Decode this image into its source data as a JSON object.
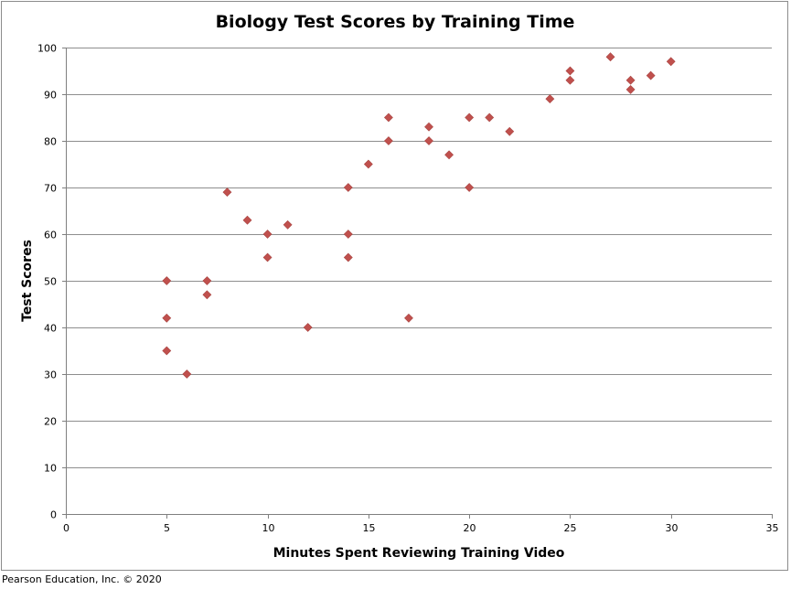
{
  "chart_data": {
    "type": "scatter",
    "title": "Biology Test Scores by Training Time",
    "xlabel": "Minutes Spent Reviewing Training Video",
    "ylabel": "Test Scores",
    "xlim": [
      0,
      35
    ],
    "ylim": [
      0,
      100
    ],
    "x_ticks": [
      0,
      5,
      10,
      15,
      20,
      25,
      30,
      35
    ],
    "y_ticks": [
      0,
      10,
      20,
      30,
      40,
      50,
      60,
      70,
      80,
      90,
      100
    ],
    "grid": true,
    "marker": "diamond",
    "marker_color": "#c0504d",
    "points": [
      {
        "x": 5,
        "y": 50
      },
      {
        "x": 5,
        "y": 42
      },
      {
        "x": 5,
        "y": 35
      },
      {
        "x": 6,
        "y": 30
      },
      {
        "x": 7,
        "y": 50
      },
      {
        "x": 7,
        "y": 47
      },
      {
        "x": 8,
        "y": 69
      },
      {
        "x": 9,
        "y": 63
      },
      {
        "x": 10,
        "y": 60
      },
      {
        "x": 10,
        "y": 55
      },
      {
        "x": 11,
        "y": 62
      },
      {
        "x": 12,
        "y": 40
      },
      {
        "x": 14,
        "y": 70
      },
      {
        "x": 14,
        "y": 60
      },
      {
        "x": 14,
        "y": 55
      },
      {
        "x": 15,
        "y": 75
      },
      {
        "x": 16,
        "y": 85
      },
      {
        "x": 16,
        "y": 80
      },
      {
        "x": 17,
        "y": 42
      },
      {
        "x": 18,
        "y": 83
      },
      {
        "x": 18,
        "y": 80
      },
      {
        "x": 19,
        "y": 77
      },
      {
        "x": 20,
        "y": 85
      },
      {
        "x": 20,
        "y": 70
      },
      {
        "x": 21,
        "y": 85
      },
      {
        "x": 22,
        "y": 82
      },
      {
        "x": 24,
        "y": 89
      },
      {
        "x": 25,
        "y": 95
      },
      {
        "x": 25,
        "y": 93
      },
      {
        "x": 27,
        "y": 98
      },
      {
        "x": 28,
        "y": 93
      },
      {
        "x": 28,
        "y": 91
      },
      {
        "x": 29,
        "y": 94
      },
      {
        "x": 30,
        "y": 97
      }
    ]
  },
  "credit": "Pearson Education, Inc. © 2020"
}
